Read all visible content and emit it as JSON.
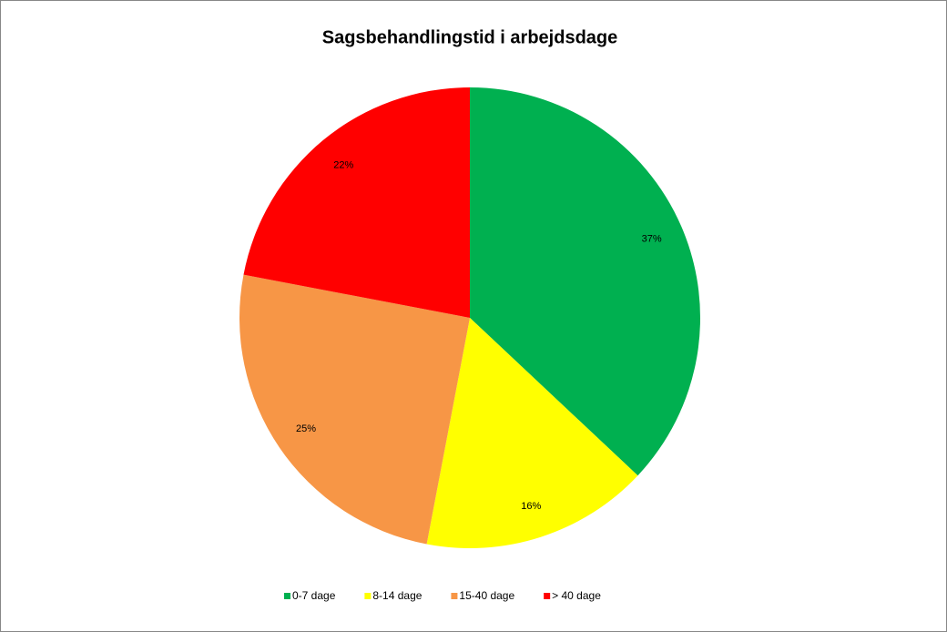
{
  "chart_data": {
    "type": "pie",
    "title": "Sagsbehandlingstid i arbejdsdage",
    "categories": [
      "0-7 dage",
      "8-14 dage",
      "15-40 dage",
      "> 40 dage"
    ],
    "values": [
      37,
      16,
      25,
      22
    ],
    "value_labels": [
      "37%",
      "16%",
      "25%",
      "22%"
    ],
    "colors": [
      "#00b050",
      "#ffff00",
      "#f79646",
      "#ff0000"
    ],
    "legend": "bottom"
  }
}
